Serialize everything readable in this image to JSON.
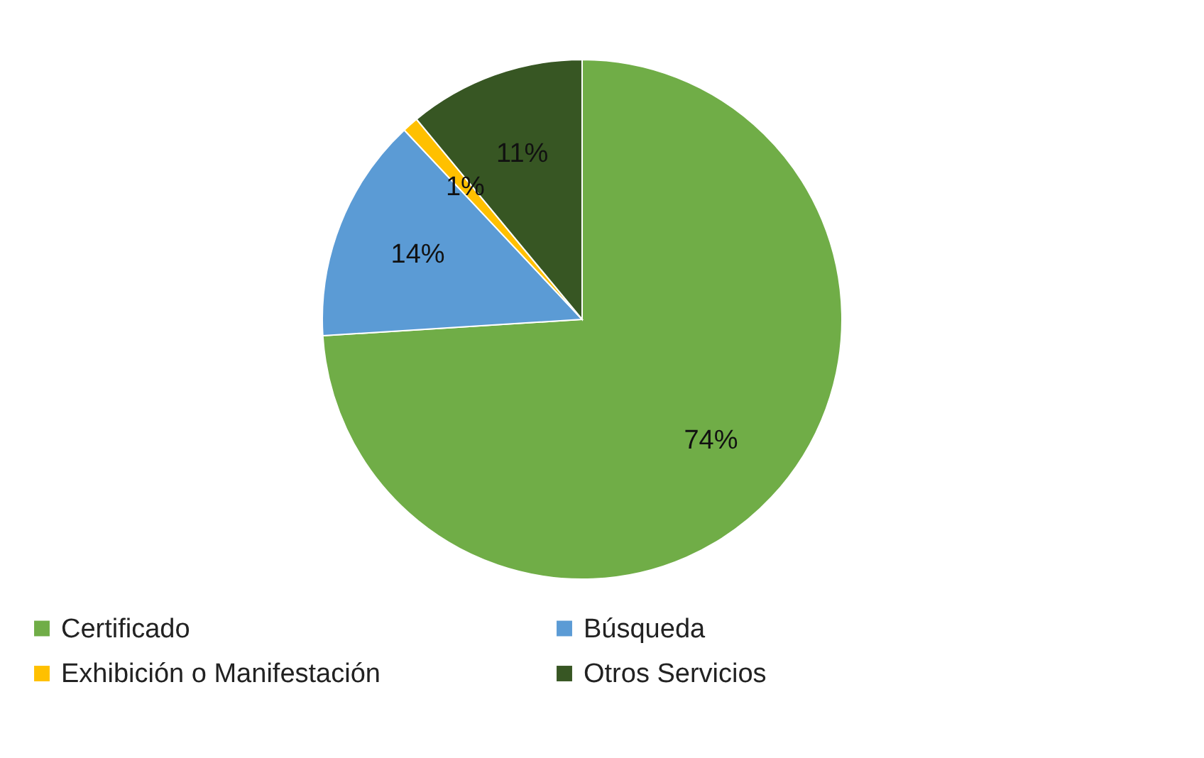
{
  "chart_data": {
    "type": "pie",
    "categories": [
      "Certificado",
      "Búsqueda",
      "Exhibición o Manifestación",
      "Otros Servicios"
    ],
    "values": [
      74,
      14,
      1,
      11
    ],
    "colors": [
      "#70ad47",
      "#5b9bd5",
      "#ffc000",
      "#375623"
    ],
    "value_labels": [
      "74%",
      "14%",
      "1%",
      "11%"
    ],
    "legend": "bottom"
  }
}
